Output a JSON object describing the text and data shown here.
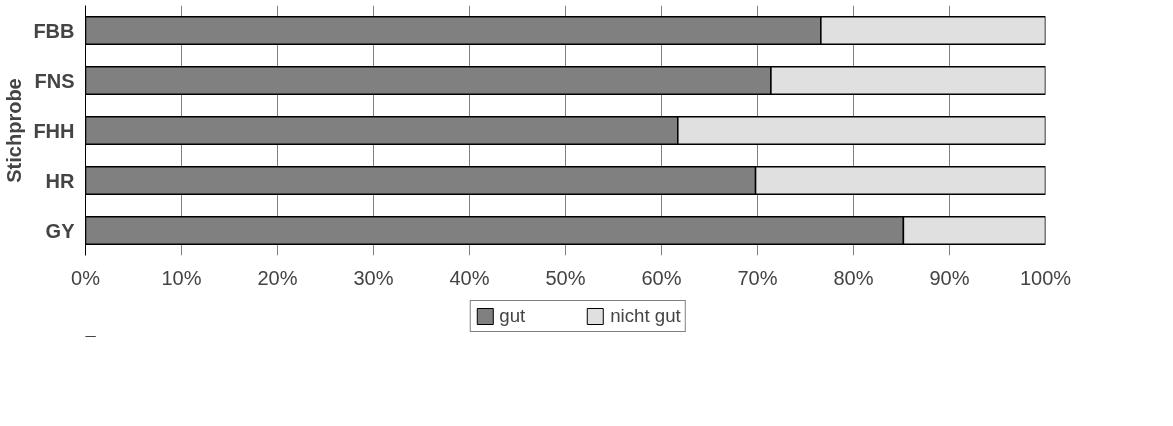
{
  "chart_data": {
    "type": "bar",
    "orientation": "horizontal",
    "stacked": true,
    "ylabel": "Stichprobe",
    "categories": [
      "FBB",
      "FNS",
      "FHH",
      "HR",
      "GY"
    ],
    "series": [
      {
        "name": "gut",
        "color": "#808080",
        "values": [
          76.6,
          71.4,
          61.7,
          69.8,
          85.2
        ]
      },
      {
        "name": "nicht gut",
        "color": "#e0e0e0",
        "values": [
          23.4,
          28.6,
          38.3,
          30.2,
          14.8
        ]
      }
    ],
    "xlim": [
      0,
      100
    ],
    "xticks": [
      {
        "value": 0,
        "label": "0%"
      },
      {
        "value": 10,
        "label": "10%"
      },
      {
        "value": 20,
        "label": "20%"
      },
      {
        "value": 30,
        "label": "30%"
      },
      {
        "value": 40,
        "label": "40%"
      },
      {
        "value": 50,
        "label": "50%"
      },
      {
        "value": 60,
        "label": "60%"
      },
      {
        "value": 70,
        "label": "70%"
      },
      {
        "value": 80,
        "label": "80%"
      },
      {
        "value": 90,
        "label": "90%"
      },
      {
        "value": 100,
        "label": "100%"
      }
    ],
    "grid": "x",
    "legend": "bottom"
  }
}
